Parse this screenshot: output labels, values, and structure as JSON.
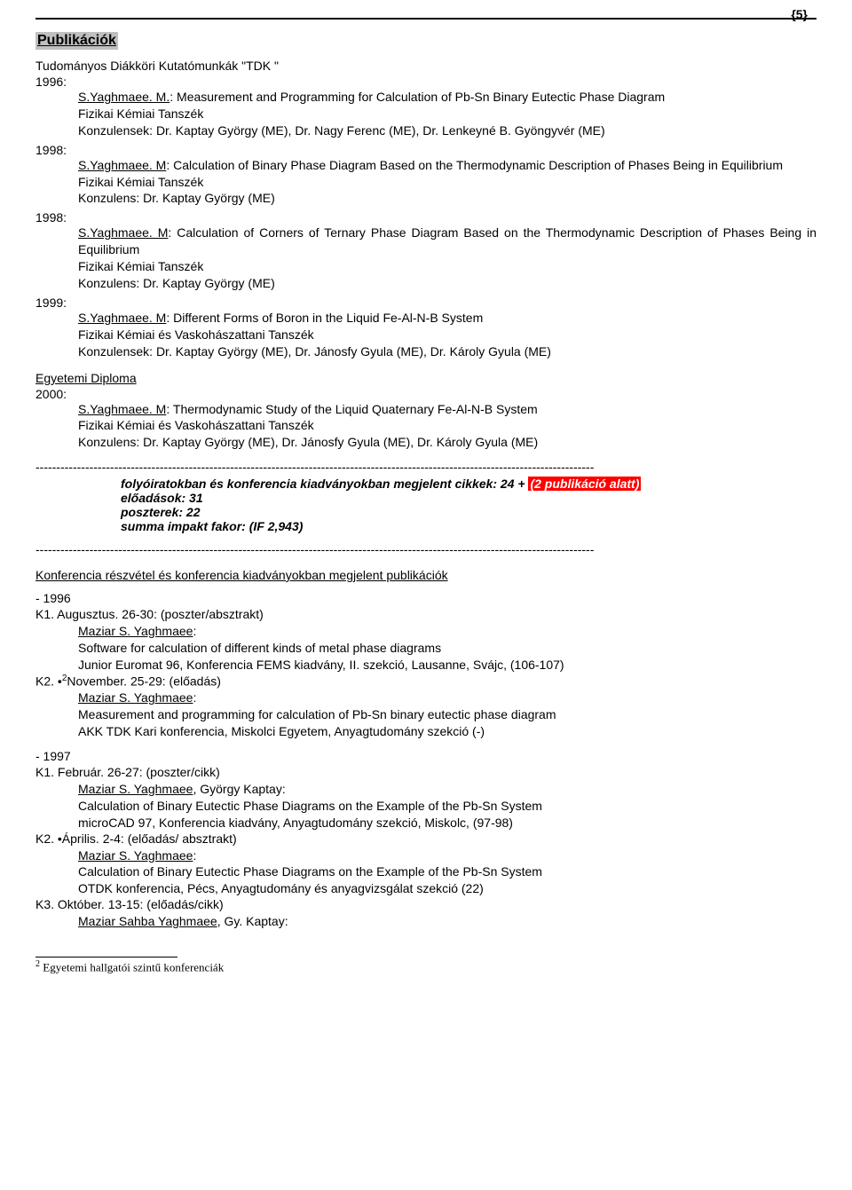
{
  "pageNumber": "{5}",
  "titles": {
    "publications": "Publikációk",
    "tdk": "Tudományos Diákköri Kutatómunkák \"TDK \"",
    "diploma": "Egyetemi Diploma",
    "conference": "Konferencia részvétel és konferencia kiadványokban megjelent publikációk"
  },
  "tdk": [
    {
      "year": "1996:",
      "author": "S.Yaghmaee. M.",
      "title": ": Measurement and Programming for Calculation of Pb-Sn Binary Eutectic Phase Diagram",
      "dept": "Fizikai Kémiai Tanszék",
      "cons": "Konzulensek: Dr. Kaptay György (ME), Dr. Nagy Ferenc (ME), Dr. Lenkeyné B. Gyöngyvér (ME)"
    },
    {
      "year": "1998:",
      "author": "S.Yaghmaee. M",
      "title": ": Calculation of Binary Phase Diagram Based on the Thermodynamic Description of Phases Being in Equilibrium",
      "dept": "Fizikai Kémiai Tanszék",
      "cons": "Konzulens: Dr. Kaptay György (ME)"
    },
    {
      "year": "1998:",
      "author": "S.Yaghmaee. M",
      "title": ": Calculation of Corners of Ternary Phase Diagram Based on the Thermodynamic Description of Phases Being in Equilibrium",
      "dept": "Fizikai Kémiai Tanszék",
      "cons": "Konzulens: Dr. Kaptay György (ME)"
    },
    {
      "year": "1999:",
      "author": "S.Yaghmaee. M",
      "title": ": Different Forms of Boron in the Liquid Fe-Al-N-B System",
      "dept": "Fizikai Kémiai és Vaskohászattani Tanszék",
      "cons": "Konzulensek: Dr. Kaptay György (ME), Dr. Jánosfy Gyula (ME), Dr. Károly Gyula (ME)"
    }
  ],
  "diploma": {
    "year": "2000:",
    "author": "S.Yaghmaee. M",
    "title": ": Thermodynamic Study of the Liquid Quaternary Fe-Al-N-B System",
    "dept": "Fizikai Kémiai és Vaskohászattani Tanszék",
    "cons": "Konzulens: Dr. Kaptay György (ME), Dr. Jánosfy Gyula (ME), Dr. Károly Gyula (ME)"
  },
  "dashes": "---------------------------------------------------------------------------------------------------------------------------------------",
  "summary": {
    "l1a": "folyóiratokban és konferencia kiadványokban megjelent cikkek: 24 + ",
    "l1b": "(2 publikáció alatt)",
    "l2": "előadások: 31",
    "l3": "poszterek: 22",
    "l4": "summa impakt fakor: (IF 2,943)"
  },
  "conf": [
    {
      "yearLabel": "- 1996",
      "items": [
        {
          "code": "K1. Augusztus. 26-30: (poszter/absztrakt)",
          "author": "Maziar S. Yaghmaee",
          "after": ":",
          "l1": "Software for calculation of different kinds of metal phase diagrams",
          "l2": "Junior Euromat 96, Konferencia FEMS kiadvány, II. szekció, Lausanne, Svájc, (106-107)"
        },
        {
          "codePrefix": "K2. •",
          "codeSup": "2",
          "codeSuffix": "November. 25-29: (előadás)",
          "author": "Maziar S. Yaghmaee",
          "after": ":",
          "l1": "Measurement and programming for calculation of Pb-Sn binary eutectic phase diagram",
          "l2": "AKK TDK Kari konferencia, Miskolci Egyetem, Anyagtudomány szekció (-)"
        }
      ]
    },
    {
      "yearLabel": "- 1997",
      "items": [
        {
          "code": "K1. Február. 26-27: (poszter/cikk)",
          "author": "Maziar S. Yaghmaee",
          "after": ", György Kaptay:",
          "l1": "Calculation of Binary Eutectic Phase Diagrams on the Example of the Pb-Sn System",
          "l2": "microCAD 97, Konferencia kiadvány, Anyagtudomány szekció, Miskolc, (97-98)"
        },
        {
          "code": "K2. •Április. 2-4: (előadás/ absztrakt)",
          "author": "Maziar S. Yaghmaee",
          "after": ":",
          "l1": "Calculation of Binary Eutectic Phase Diagrams on the Example of the Pb-Sn System",
          "l2": "OTDK konferencia, Pécs, Anyagtudomány és anyagvizsgálat szekció (22)"
        },
        {
          "code": "K3. Október. 13-15: (előadás/cikk)",
          "author": "Maziar Sahba Yaghmaee",
          "after": ", Gy. Kaptay:"
        }
      ]
    }
  ],
  "footnote": {
    "num": "2",
    "text": " Egyetemi hallgatói szintű konferenciák"
  }
}
